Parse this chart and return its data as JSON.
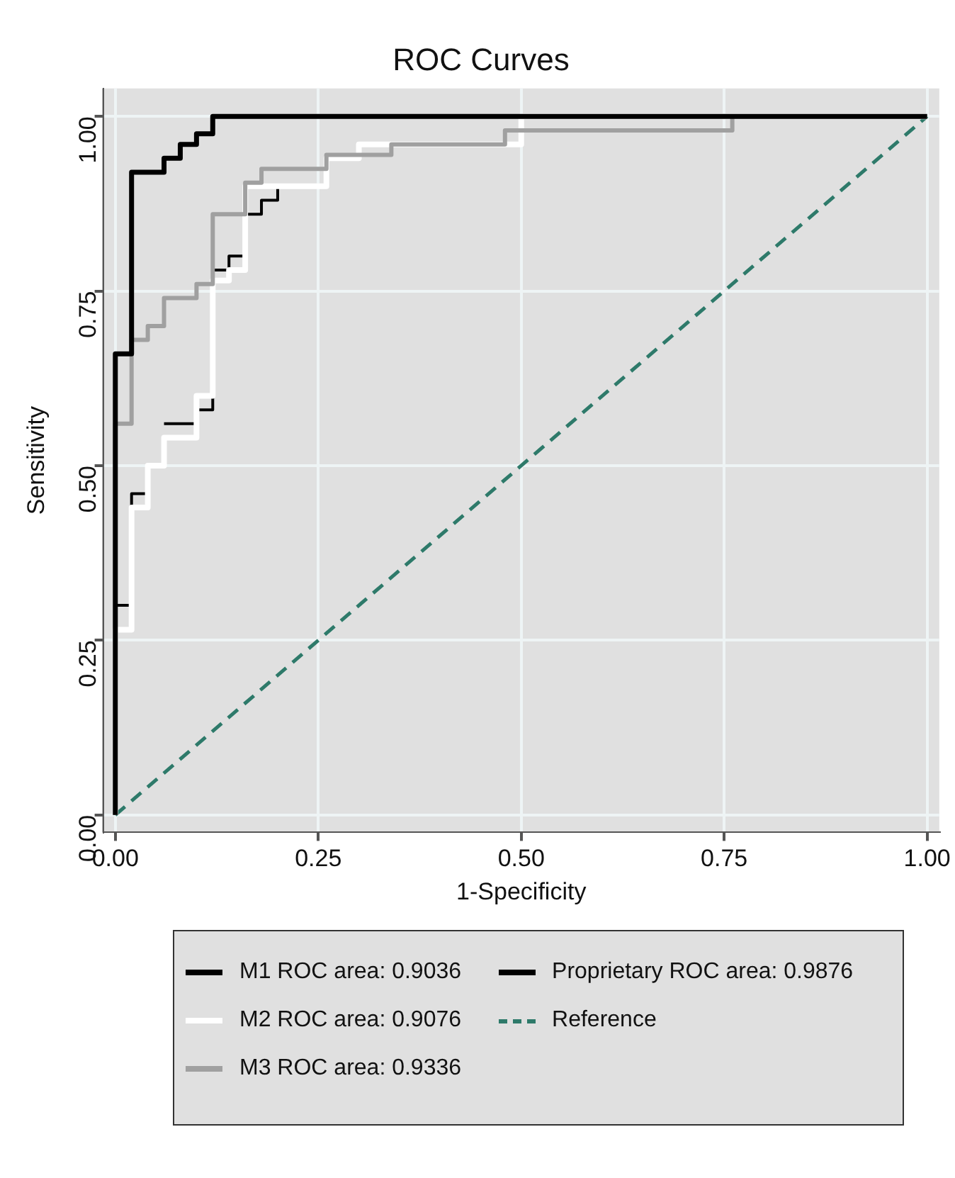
{
  "chart_data": {
    "type": "line",
    "title": "ROC Curves",
    "xlabel": "1-Specificity",
    "ylabel": "Sensitivity",
    "xlim": [
      -0.015,
      1.015
    ],
    "ylim": [
      -0.025,
      1.04
    ],
    "xticks": [
      {
        "value": 0,
        "label": "0.00"
      },
      {
        "value": 0.25,
        "label": "0.25"
      },
      {
        "value": 0.5,
        "label": "0.50"
      },
      {
        "value": 0.75,
        "label": "0.75"
      },
      {
        "value": 1,
        "label": "1.00"
      }
    ],
    "yticks": [
      {
        "value": 0,
        "label": "0.00"
      },
      {
        "value": 0.25,
        "label": "0.25"
      },
      {
        "value": 0.5,
        "label": "0.50"
      },
      {
        "value": 0.75,
        "label": "0.75"
      },
      {
        "value": 1,
        "label": "1.00"
      }
    ],
    "grid": true,
    "legend": "bottom",
    "marker": "none",
    "line_style": "solid",
    "series": [
      {
        "name": "M1 ROC area: 0.9036",
        "color": "#000000",
        "x": [
          0,
          0,
          0.02,
          0.02,
          0.04,
          null,
          0.06,
          0.1,
          0.1,
          0.12,
          0.12,
          0.14,
          0.14,
          0.16,
          0.16,
          0.18,
          0.18,
          0.2,
          0.2
        ],
        "values": [
          0,
          0.3,
          0.3,
          0.46,
          0.46,
          null,
          0.56,
          0.56,
          0.58,
          0.58,
          0.78,
          0.78,
          0.8,
          0.8,
          0.86,
          0.86,
          0.88,
          0.88,
          0.9
        ]
      },
      {
        "name": "M2 ROC area: 0.9076",
        "color": "#ffffff",
        "x": [
          0,
          0,
          0.02,
          0.02,
          0.04,
          0.04,
          0.06,
          0.06,
          0.1,
          0.1,
          0.12,
          0.12,
          0.14,
          0.14,
          0.16,
          0.16,
          0.26,
          0.26,
          0.3,
          0.3,
          0.5,
          0.5,
          1
        ],
        "values": [
          0,
          0.265,
          0.265,
          0.44,
          0.44,
          0.5,
          0.5,
          0.54,
          0.54,
          0.6,
          0.6,
          0.765,
          0.765,
          0.78,
          0.78,
          0.9,
          0.9,
          0.94,
          0.94,
          0.96,
          0.96,
          1,
          1
        ]
      },
      {
        "name": "M3 ROC area: 0.9336",
        "color": "#a0a0a0",
        "x": [
          0,
          0,
          0.02,
          0.02,
          0.04,
          0.04,
          0.06,
          0.06,
          0.1,
          0.1,
          0.12,
          0.12,
          0.16,
          0.16,
          0.18,
          0.18,
          0.26,
          0.26,
          0.34,
          0.34,
          0.48,
          0.48,
          0.76,
          0.76,
          1
        ],
        "values": [
          0,
          0.56,
          0.56,
          0.68,
          0.68,
          0.7,
          0.7,
          0.74,
          0.74,
          0.76,
          0.76,
          0.86,
          0.86,
          0.905,
          0.905,
          0.925,
          0.925,
          0.945,
          0.945,
          0.96,
          0.96,
          0.98,
          0.98,
          1,
          1
        ]
      },
      {
        "name": "Proprietary ROC area: 0.9876",
        "color": "#000000",
        "x": [
          0,
          0,
          0.02,
          0.02,
          0.06,
          0.06,
          0.08,
          0.08,
          0.1,
          0.1,
          0.12,
          0.12,
          1
        ],
        "values": [
          0,
          0.66,
          0.66,
          0.92,
          0.92,
          0.94,
          0.94,
          0.96,
          0.96,
          0.975,
          0.975,
          1,
          1
        ]
      },
      {
        "name": "Reference",
        "color": "#2e7a6a",
        "line_style": "dashed",
        "x": [
          0,
          1
        ],
        "values": [
          0,
          1
        ]
      }
    ]
  }
}
